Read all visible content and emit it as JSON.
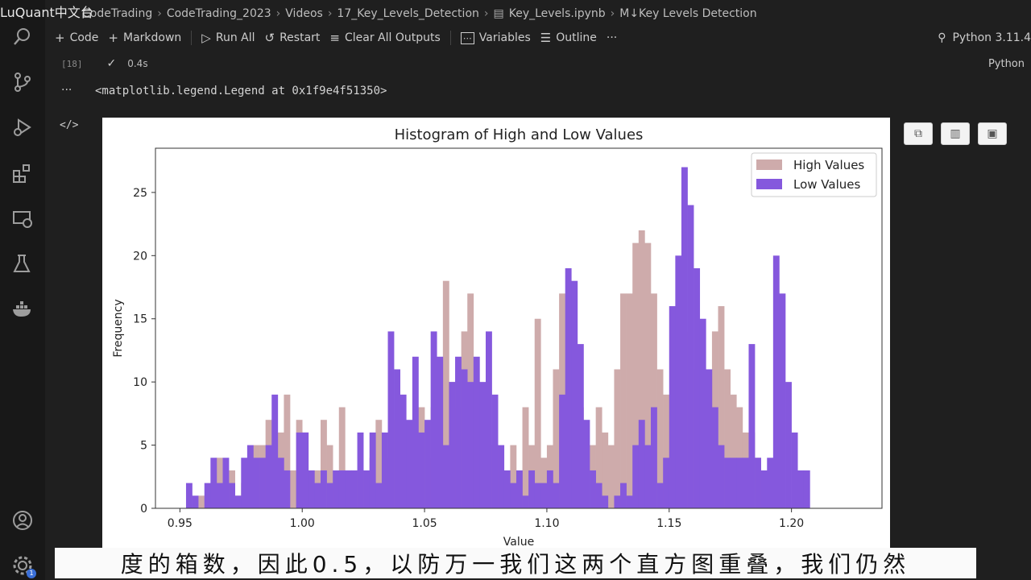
{
  "watermark": "LuQuant中文台",
  "breadcrumb": [
    "CodeTrading",
    "CodeTrading_2023",
    "Videos",
    "17_Key_Levels_Detection",
    "Key_Levels.ipynb",
    "M↓Key Levels Detection"
  ],
  "toolbar": {
    "code_label": "Code",
    "markdown_label": "Markdown",
    "run_all_label": "Run All",
    "restart_label": "Restart",
    "clear_label": "Clear All Outputs",
    "variables_label": "Variables",
    "outline_label": "Outline",
    "more_label": "···"
  },
  "kernel_label": "Python 3.11.4",
  "cell": {
    "exec_count": "[18]",
    "check": "✓",
    "duration": "0.4s",
    "language": "Python"
  },
  "output_text": "<matplotlib.legend.Legend at 0x1f9e4f51350>",
  "activity_icons": [
    "search-icon",
    "source-control-icon",
    "run-debug-icon",
    "extensions-icon",
    "remote-explorer-icon",
    "testing-icon",
    "docker-icon",
    "account-icon",
    "settings-icon"
  ],
  "settings_badge": "1",
  "subtitle": "度的箱数，因此0.5，以防万一我们这两个直方图重叠，我们仍然",
  "chart_data": {
    "type": "bar",
    "title": "Histogram of High and Low Values",
    "xlabel": "Value",
    "ylabel": "Frequency",
    "xlim": [
      0.94,
      1.237
    ],
    "ylim": [
      0,
      28.5
    ],
    "xticks": [
      "0.95",
      "1.00",
      "1.05",
      "1.10",
      "1.15",
      "1.20"
    ],
    "yticks": [
      "0",
      "5",
      "10",
      "15",
      "20",
      "25"
    ],
    "bin_width": 0.0025,
    "legend_position": "top-right",
    "series": [
      {
        "name": "High Values",
        "color": "#ceabab",
        "bin_start": 0.9575,
        "values": [
          1,
          0,
          2,
          4,
          2,
          3,
          1,
          2,
          4,
          5,
          5,
          7,
          3,
          6,
          9,
          3,
          7,
          6,
          3,
          3,
          7,
          5,
          2,
          8,
          3,
          3,
          3,
          2,
          4,
          7,
          4,
          3,
          7,
          6,
          3,
          5,
          8,
          4,
          8,
          11,
          18,
          10,
          8,
          14,
          17,
          7,
          7,
          3,
          5,
          2,
          2,
          5,
          3,
          8,
          5,
          15,
          4,
          5,
          11,
          17,
          4,
          5,
          8,
          1,
          5,
          8,
          6,
          5,
          11,
          17,
          17,
          21,
          22,
          21,
          17,
          11,
          9,
          8,
          9,
          14,
          11,
          8,
          8,
          8,
          14,
          16,
          11,
          9,
          8,
          6,
          6,
          4,
          2
        ]
      },
      {
        "name": "Low Values",
        "color": "#8558dd",
        "bin_start": 0.9525,
        "values": [
          2,
          1,
          0,
          2,
          4,
          2,
          4,
          2,
          1,
          4,
          5,
          4,
          4,
          5,
          9,
          4,
          3,
          0,
          6,
          6,
          3,
          2,
          3,
          2,
          3,
          3,
          3,
          3,
          6,
          3,
          6,
          2,
          6,
          14,
          11,
          9,
          7,
          12,
          6,
          7,
          14,
          12,
          5,
          10,
          12,
          11,
          10,
          12,
          10,
          14,
          9,
          5,
          3,
          2,
          3,
          1,
          3,
          2,
          2,
          3,
          2,
          9,
          19,
          18,
          13,
          7,
          3,
          2,
          1,
          0,
          1,
          2,
          1,
          5,
          7,
          5,
          8,
          2,
          4,
          16,
          20,
          27,
          24,
          19,
          15,
          11,
          8,
          5,
          4,
          4,
          4,
          4,
          13,
          4,
          3,
          4,
          20,
          17,
          10,
          6,
          3,
          3
        ]
      }
    ]
  }
}
